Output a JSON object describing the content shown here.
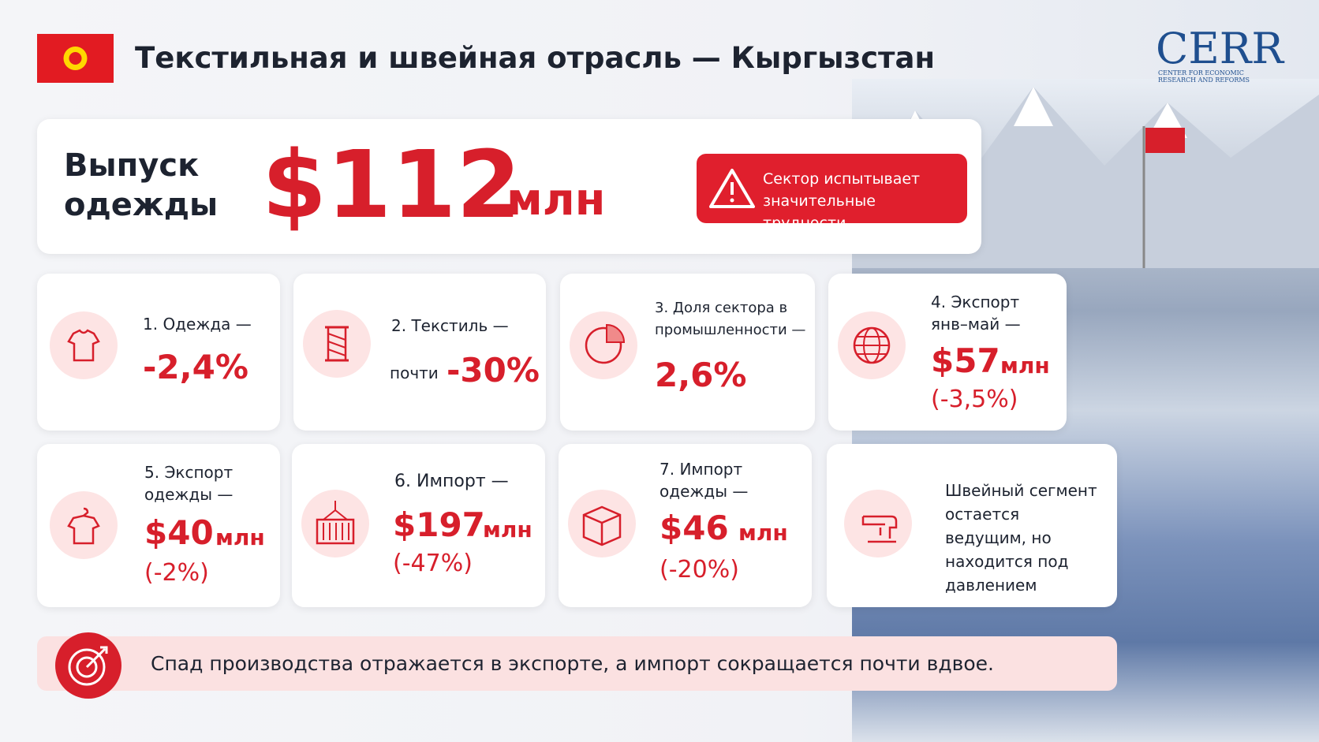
{
  "header": {
    "title": "Текстильная и швейная отрасль — Кыргызстан",
    "logo": "CERR",
    "logo_sub": "CENTER FOR ECONOMIC RESEARCH AND REFORMS"
  },
  "hero": {
    "label": "Выпуск одежды",
    "value": "$112",
    "unit": "млн",
    "alert": "Сектор испытывает значительные трудности"
  },
  "cards": [
    {
      "label": "1. Одежда —",
      "value": "-2,4%"
    },
    {
      "label": "2. Текстиль —",
      "prefix": "почти",
      "value": "-30%"
    },
    {
      "label": "3. Доля сектора в промышленности —",
      "value": "2,6%"
    },
    {
      "label": "4. Экспорт янв–май —",
      "value": "$57",
      "unit": "млн",
      "change": "(-3,5%)"
    },
    {
      "label": "5. Экспорт одежды —",
      "value": "$40",
      "unit": "млн",
      "change": "(-2%)"
    },
    {
      "label": "6. Импорт —",
      "value": "$197",
      "unit": "млн",
      "change": "(-47%)"
    },
    {
      "label": "7. Импорт одежды —",
      "value": "$46",
      "unit": "млн",
      "change": "(-20%)"
    },
    {
      "text": "Швейный сегмент остается ведущим, но находится под давлением"
    }
  ],
  "footer": {
    "text": "Спад производства отражается в экспорте, а импорт сокращается почти вдвое."
  }
}
